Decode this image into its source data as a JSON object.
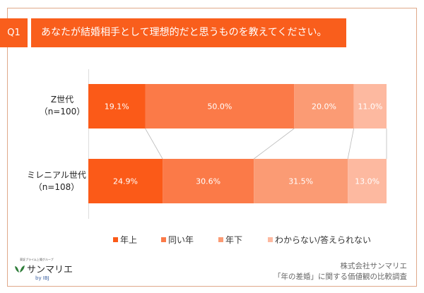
{
  "header": {
    "question_no": "Q1",
    "title": "あなたが結婚相手として理想的だと思うものを教えてください。"
  },
  "chart_data": {
    "type": "bar",
    "orientation": "horizontal-stacked-100",
    "categories": [
      {
        "label": "Z世代",
        "sub": "（n=100）"
      },
      {
        "label": "ミレニアル世代",
        "sub": "（n=108）"
      }
    ],
    "series": [
      {
        "name": "年上",
        "values": [
          19.1,
          24.9
        ],
        "labels": [
          "19.1%",
          "24.9%"
        ],
        "color": "#fb5a18"
      },
      {
        "name": "同い年",
        "values": [
          50.0,
          30.6
        ],
        "labels": [
          "50.0%",
          "30.6%"
        ],
        "color": "#fb7a48"
      },
      {
        "name": "年下",
        "values": [
          20.0,
          31.5
        ],
        "labels": [
          "20.0%",
          "31.5%"
        ],
        "color": "#fb9b74"
      },
      {
        "name": "わからない/答えられない",
        "values": [
          11.0,
          13.0
        ],
        "labels": [
          "11.0%",
          "13.0%"
        ],
        "color": "#fdb9a0"
      }
    ],
    "xlim": [
      0,
      100
    ],
    "legend": "bottom",
    "series_connector_lines": true
  },
  "footer": {
    "logo_tagline": "東証プライム上場グループ",
    "logo_name": "サンマリエ",
    "logo_by": "by IBJ",
    "company": "株式会社サンマリエ",
    "survey": "「年の差婚」に関する価値観の比較調査"
  }
}
